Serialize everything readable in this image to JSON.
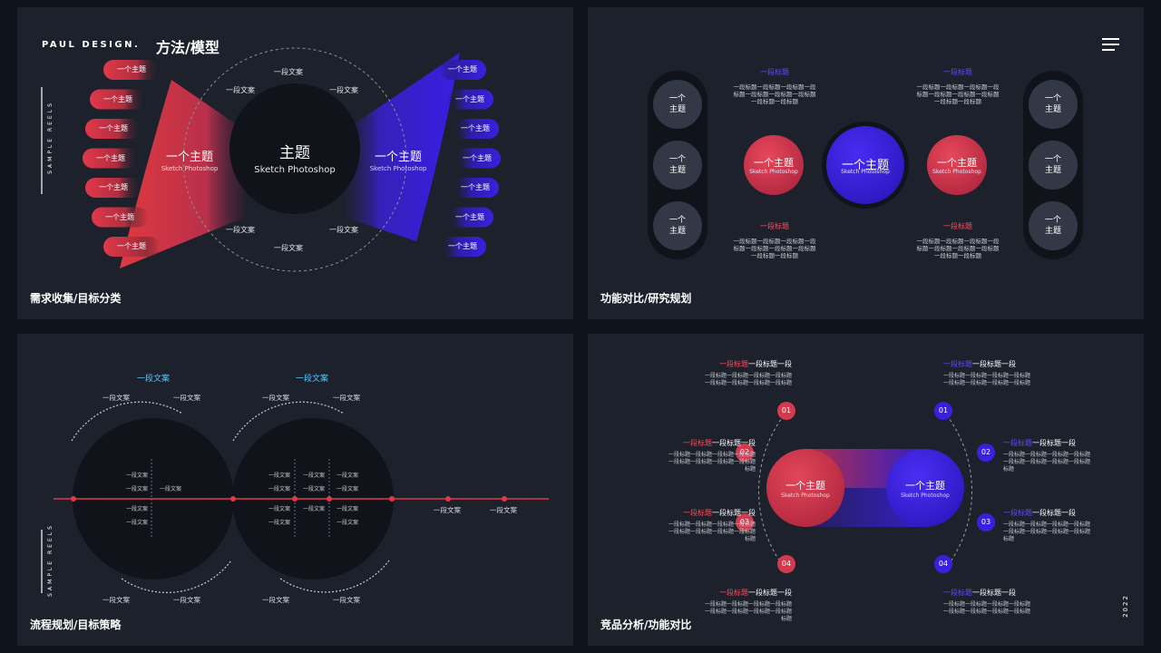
{
  "colors": {
    "red": "#e0394a",
    "blue": "#3b1fe0",
    "blue_label": "#5f4bff",
    "red_label": "#ff4d5e",
    "cyan": "#5cc6f5",
    "panel": "#1c212c",
    "dark": "#101319",
    "chip": "#323845"
  },
  "p1": {
    "brand": "PAUL DESIGN.",
    "heading": "方法/模型",
    "side_text": "SAMPLE REELS",
    "caption": "需求收集/目标分类",
    "center_title": "主题",
    "center_sub": "Sketch Photoshop",
    "left_title": "一个主题",
    "left_sub": "Sketch Photoshop",
    "right_title": "一个主题",
    "right_sub": "Sketch Photoshop",
    "ring_labels": [
      "一段文案",
      "一段文案",
      "一段文案",
      "一段文案",
      "一段文案",
      "一段文案"
    ],
    "left_pills": [
      "一个主题",
      "一个主题",
      "一个主题",
      "一个主题",
      "一个主题",
      "一个主题",
      "一个主题"
    ],
    "right_pills": [
      "一个主题",
      "一个主题",
      "一个主题",
      "一个主题",
      "一个主题",
      "一个主题",
      "一个主题"
    ]
  },
  "p2": {
    "caption": "功能对比/研究规划",
    "menu_icon": "hamburger-icon",
    "left_chips": [
      "一个主题",
      "一个主题",
      "一个主题"
    ],
    "right_chips": [
      "一个主题",
      "一个主题",
      "一个主题"
    ],
    "circles": [
      {
        "title": "一个主题",
        "sub": "Sketch Photoshop"
      },
      {
        "title": "一个主题",
        "sub": "Sketch Photoshop"
      },
      {
        "title": "一个主题",
        "sub": "Sketch Photoshop"
      }
    ],
    "blocks": [
      {
        "title": "一段标题",
        "lines": [
          "一段标题一段标题一段标题一段",
          "标题一段标题一段标题一段标题",
          "一段标题一段标题"
        ]
      },
      {
        "title": "一段标题",
        "lines": [
          "一段标题一段标题一段标题一段",
          "标题一段标题一段标题一段标题",
          "一段标题一段标题"
        ]
      },
      {
        "title": "一段标题",
        "lines": [
          "一段标题一段标题一段标题一段",
          "标题一段标题一段标题一段标题",
          "一段标题一段标题"
        ]
      },
      {
        "title": "一段标题",
        "lines": [
          "一段标题一段标题一段标题一段",
          "标题一段标题一段标题一段标题",
          "一段标题一段标题"
        ]
      }
    ]
  },
  "p3": {
    "caption": "流程规划/目标策略",
    "side_text": "SAMPLE REELS",
    "headings": [
      "一段文案",
      "一段文案"
    ],
    "top_labels": [
      "一段文案",
      "一段文案",
      "一段文案",
      "一段文案"
    ],
    "bottom_labels": [
      "一段文案",
      "一段文案",
      "一段文案",
      "一段文案"
    ],
    "axis_labels": [
      "一段文案",
      "一段文案"
    ],
    "c1_labels": [
      "一段文案",
      "一段文案",
      "一段文案",
      "一段文案",
      "一段文案"
    ],
    "c2_labels": [
      "一段文案",
      "一段文案",
      "一段文案",
      "一段文案",
      "一段文案",
      "一段文案",
      "一段文案",
      "一段文案",
      "一段文案",
      "一段文案",
      "一段文案"
    ]
  },
  "p4": {
    "caption": "竞品分析/功能对比",
    "year": "2022",
    "left_circle": {
      "title": "一个主题",
      "sub": "Sketch Photoshop"
    },
    "right_circle": {
      "title": "一个主题",
      "sub": "Sketch Photoshop"
    },
    "left_nums": [
      "01",
      "02",
      "03",
      "04"
    ],
    "right_nums": [
      "01",
      "02",
      "03",
      "04"
    ],
    "left_items": [
      {
        "hl": "一段标题",
        "rest": "一段标题一段",
        "lines": [
          "一段标题一段标题一段标题一段标题",
          "一段标题一段标题一段标题一段标题"
        ]
      },
      {
        "hl": "一段标题",
        "rest": "一段标题一段",
        "lines": [
          "一段标题一段标题一段标题一段标题",
          "一段标题一段标题一段标题一段标题",
          "标题"
        ]
      },
      {
        "hl": "一段标题",
        "rest": "一段标题一段",
        "lines": [
          "一段标题一段标题一段标题一段标题",
          "一段标题一段标题一段标题一段标题",
          "标题"
        ]
      },
      {
        "hl": "一段标题",
        "rest": "一段标题一段",
        "lines": [
          "一段标题一段标题一段标题一段标题",
          "一段标题一段标题一段标题一段标题",
          "标题"
        ]
      }
    ],
    "right_items": [
      {
        "hl": "一段标题",
        "rest": "一段标题一段",
        "lines": [
          "一段标题一段标题一段标题一段标题",
          "一段标题一段标题一段标题一段标题"
        ]
      },
      {
        "hl": "一段标题",
        "rest": "一段标题一段",
        "lines": [
          "一段标题一段标题一段标题一段标题",
          "一段标题一段标题一段标题一段标题",
          "标题"
        ]
      },
      {
        "hl": "一段标题",
        "rest": "一段标题一段",
        "lines": [
          "一段标题一段标题一段标题一段标题",
          "一段标题一段标题一段标题一段标题",
          "标题"
        ]
      },
      {
        "hl": "一段标题",
        "rest": "一段标题一段",
        "lines": [
          "一段标题一段标题一段标题一段标题",
          "一段标题一段标题一段标题一段标题"
        ]
      }
    ]
  }
}
